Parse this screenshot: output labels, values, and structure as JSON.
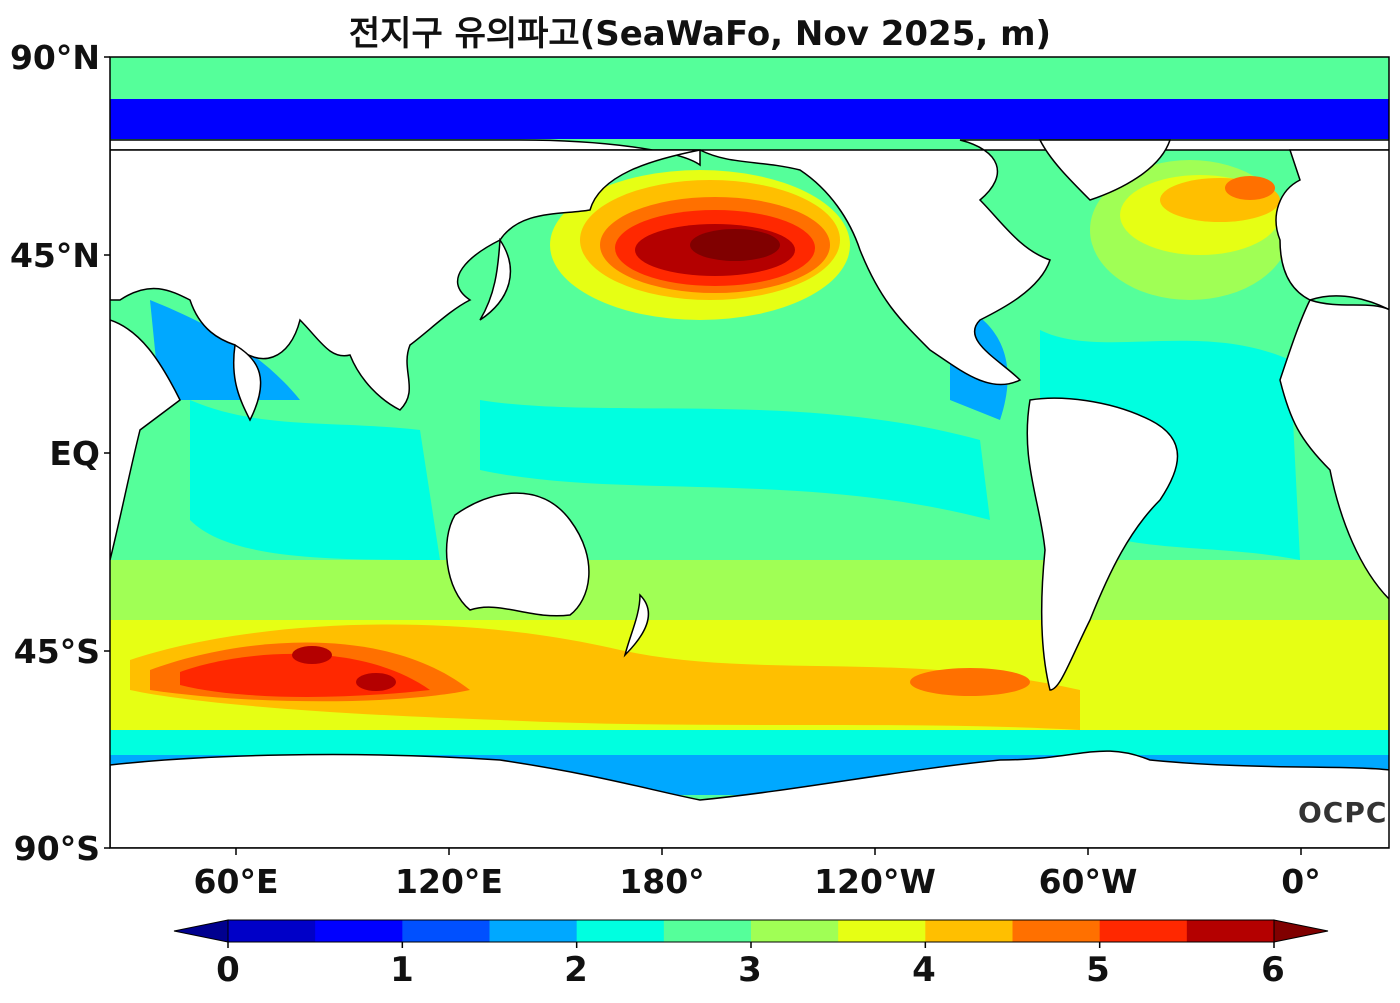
{
  "title": "전지구 유의파고(SeaWaFo, Nov 2025, m)",
  "logo": "OCPC",
  "lat_labels": [
    "90°N",
    "45°N",
    "EQ",
    "45°S",
    "90°S"
  ],
  "lon_labels": [
    "60°E",
    "120°E",
    "180°",
    "120°W",
    "60°W",
    "0°"
  ],
  "colorbar": {
    "labels": [
      "0",
      "1",
      "2",
      "3",
      "4",
      "5",
      "6"
    ],
    "min": 0,
    "max": 6,
    "step": 0.5,
    "colors": [
      "#00008f",
      "#0000c8",
      "#0000ff",
      "#0050ff",
      "#00a8ff",
      "#00ffe0",
      "#55ff9a",
      "#a0ff55",
      "#e6ff14",
      "#ffbf00",
      "#ff7000",
      "#ff2800",
      "#b40000",
      "#800000"
    ],
    "extend": "both"
  },
  "colors": {
    "land": "#ffffff",
    "coast": "#000000"
  }
}
